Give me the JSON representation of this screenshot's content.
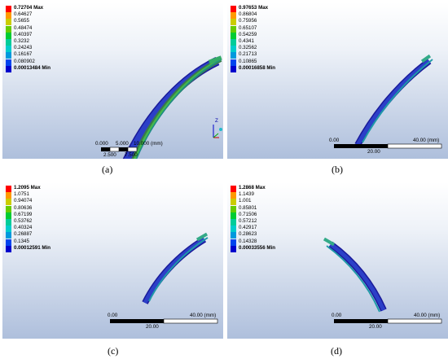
{
  "colors": [
    "#ff0000",
    "#ff9900",
    "#cccc00",
    "#66cc00",
    "#00cc33",
    "#00cc99",
    "#00cccc",
    "#0099dd",
    "#0044ee",
    "#0000cc"
  ],
  "panels": [
    {
      "caption": "(a)",
      "legend": [
        "0.72704 Max",
        "0.64627",
        "0.5655",
        "0.48474",
        "0.40397",
        "0.3232",
        "0.24243",
        "0.16167",
        "0.080902",
        "0.00013484 Min"
      ],
      "scale_top": [
        "0.000",
        "5.000",
        "10.000 (mm)"
      ],
      "scale_bottom": [
        "2.500",
        "7.500"
      ],
      "axis": "Z"
    },
    {
      "caption": "(b)",
      "legend": [
        "0.97653 Max",
        "0.86804",
        "0.75956",
        "0.65107",
        "0.54259",
        "0.4341",
        "0.32562",
        "0.21713",
        "0.10865",
        "0.00016858 Min"
      ],
      "scale_top": [
        "0.00",
        "40.00 (mm)"
      ],
      "scale_bottom": [
        "20.00"
      ]
    },
    {
      "caption": "(c)",
      "legend": [
        "1.2095 Max",
        "1.0751",
        "0.94074",
        "0.80636",
        "0.67199",
        "0.53762",
        "0.40324",
        "0.26887",
        "0.1345",
        "0.00012591 Min"
      ],
      "scale_top": [
        "0.00",
        "40.00 (mm)"
      ],
      "scale_bottom": [
        "20.00"
      ]
    },
    {
      "caption": "(d)",
      "legend": [
        "1.2868 Max",
        "1.1439",
        "1.001",
        "0.85801",
        "0.71506",
        "0.57212",
        "0.42917",
        "0.28623",
        "0.14328",
        "0.00033556 Min"
      ],
      "scale_top": [
        "0.00",
        "40.00 (mm)"
      ],
      "scale_bottom": [
        "20.00"
      ]
    }
  ]
}
